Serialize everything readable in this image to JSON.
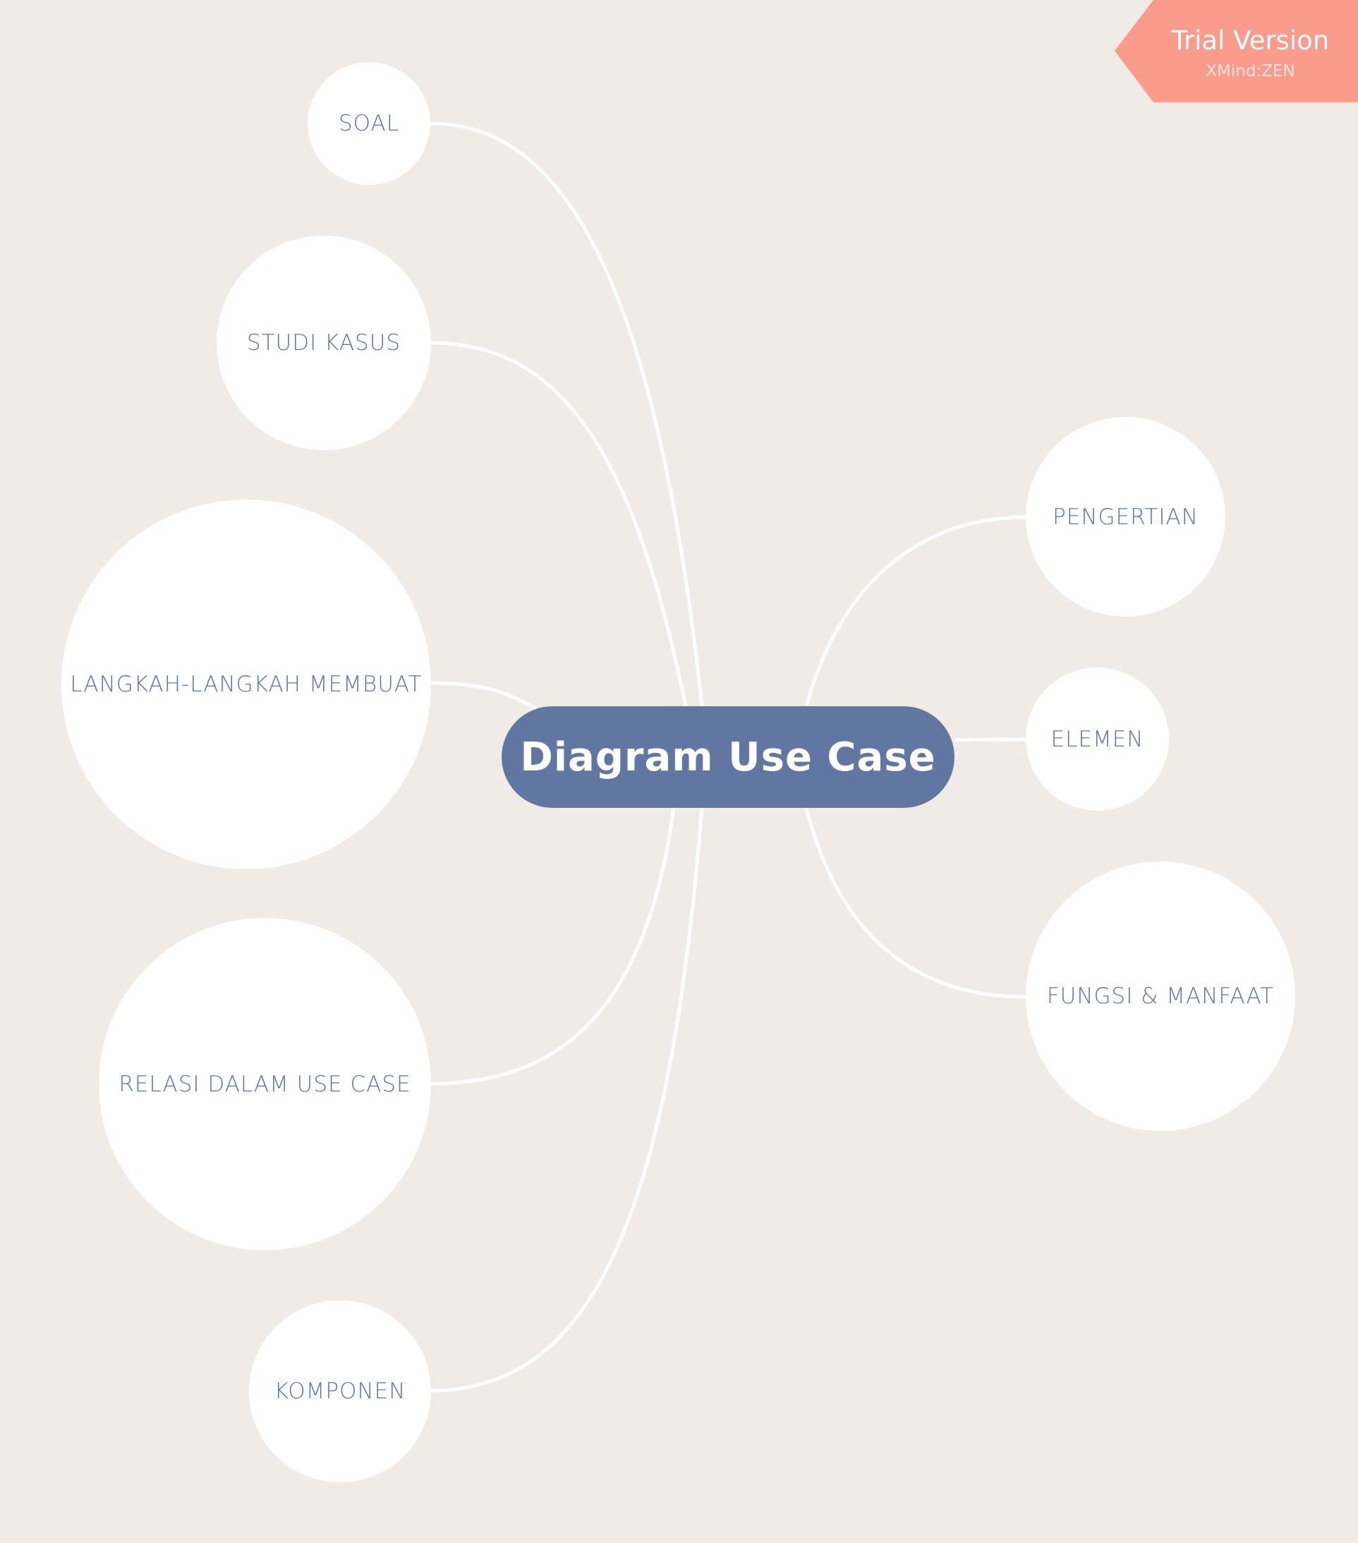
{
  "watermark": {
    "title": "Trial Version",
    "subtitle": "XMind:ZEN",
    "color": "#f99c8c"
  },
  "central_topic": {
    "label": "Diagram Use Case",
    "color": "#6177a2"
  },
  "left_topics": [
    {
      "label": "SOAL"
    },
    {
      "label": "STUDI KASUS"
    },
    {
      "label": "LANGKAH-LANGKAH MEMBUAT"
    },
    {
      "label": "RELASI DALAM USE CASE"
    },
    {
      "label": "KOMPONEN"
    }
  ],
  "right_topics": [
    {
      "label": "PENGERTIAN"
    },
    {
      "label": "ELEMEN"
    },
    {
      "label": "FUNGSI & MANFAAT"
    }
  ],
  "colors": {
    "background": "#f0ebe5",
    "node_fill": "#ffffff",
    "node_text": "#5d74a4",
    "connector": "#ffffff"
  }
}
